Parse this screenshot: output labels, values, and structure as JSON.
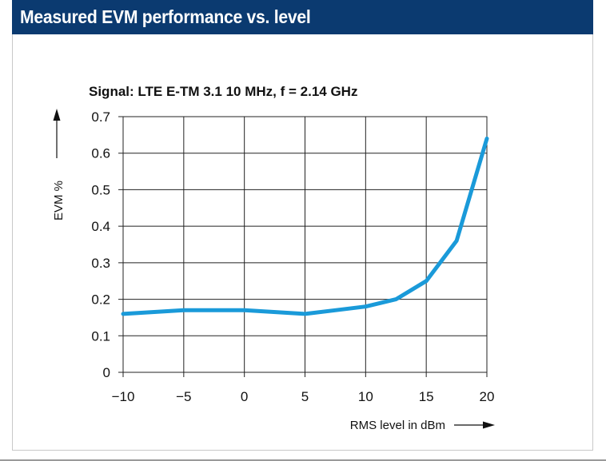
{
  "header": {
    "title": "Measured EVM performance vs. level"
  },
  "accent_color": "#0b3a70",
  "line_color": "#1a9ad9",
  "chart_data": {
    "type": "line",
    "subtitle": "Signal: LTE E-TM 3.1 10 MHz, f = 2.14 GHz",
    "xlabel": "RMS level in dBm",
    "ylabel": "EVM %",
    "xlim": [
      -10,
      20
    ],
    "ylim": [
      0,
      0.7
    ],
    "x_ticks": [
      -10,
      -5,
      0,
      5,
      10,
      15,
      20
    ],
    "x_tick_labels": [
      "−10",
      "−5",
      "0",
      "5",
      "10",
      "15",
      "20"
    ],
    "y_ticks": [
      0,
      0.1,
      0.2,
      0.3,
      0.4,
      0.5,
      0.6,
      0.7
    ],
    "y_tick_labels": [
      "0",
      "0.1",
      "0.2",
      "0.3",
      "0.4",
      "0.5",
      "0.6",
      "0.7"
    ],
    "grid": true,
    "series": [
      {
        "x": [
          -10,
          -5,
          0,
          5,
          7.5,
          10,
          12.5,
          15,
          17.5,
          20
        ],
        "y": [
          0.16,
          0.17,
          0.17,
          0.16,
          0.17,
          0.18,
          0.2,
          0.25,
          0.36,
          0.64
        ]
      }
    ]
  }
}
